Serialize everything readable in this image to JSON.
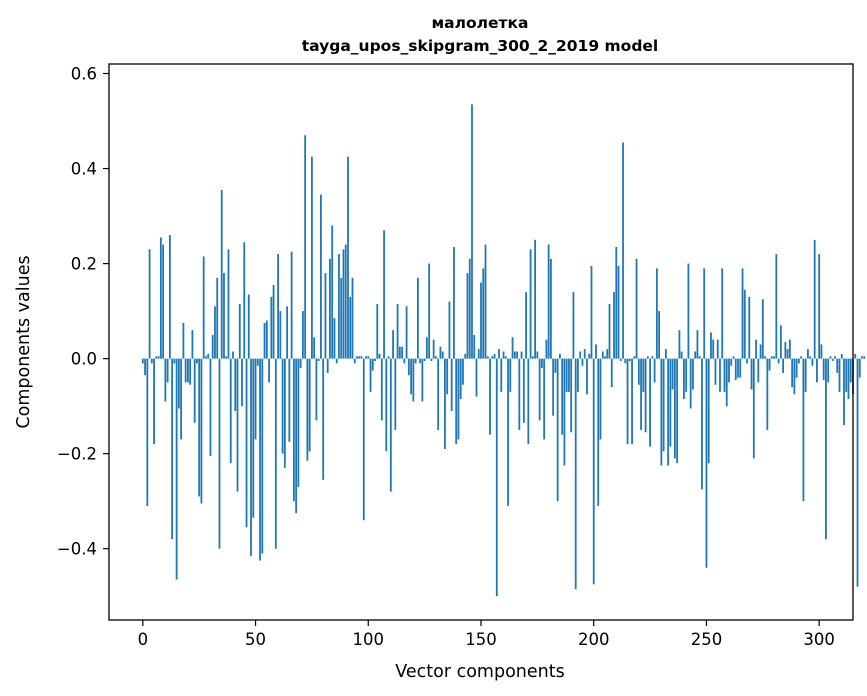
{
  "chart_data": {
    "type": "bar",
    "title_line1": "малолетка",
    "title_line2": "tayga_upos_skipgram_300_2_2019 model",
    "xlabel": "Vector components",
    "ylabel": "Components values",
    "xlim": [
      -15,
      315
    ],
    "ylim": [
      -0.55,
      0.62
    ],
    "xticks": [
      0,
      50,
      100,
      150,
      200,
      250,
      300
    ],
    "yticks": [
      -0.4,
      -0.2,
      0.0,
      0.2,
      0.4,
      0.6
    ],
    "ytick_labels": [
      "−0.4",
      "−0.2",
      "0.0",
      "0.2",
      "0.4",
      "0.6"
    ],
    "grid": false,
    "bar_color": "#1f77b4",
    "values": [
      -0.01,
      -0.035,
      -0.31,
      0.23,
      -0.01,
      -0.18,
      0.005,
      0.005,
      0.255,
      0.24,
      -0.09,
      -0.05,
      0.26,
      -0.38,
      -0.01,
      -0.465,
      -0.105,
      -0.17,
      0.075,
      -0.05,
      -0.05,
      -0.055,
      0.06,
      -0.135,
      -0.01,
      -0.29,
      -0.305,
      0.215,
      0.005,
      0.01,
      -0.205,
      0.05,
      0.11,
      0.17,
      -0.4,
      0.355,
      0.18,
      0.005,
      0.23,
      -0.22,
      0.015,
      -0.11,
      -0.28,
      0.115,
      -0.1,
      0.245,
      -0.355,
      0.135,
      -0.415,
      -0.335,
      -0.17,
      -0.015,
      -0.425,
      -0.41,
      0.075,
      0.08,
      -0.05,
      0.13,
      0.155,
      -0.4,
      0.22,
      0.1,
      -0.2,
      -0.23,
      0.11,
      -0.175,
      0.225,
      -0.3,
      -0.325,
      -0.27,
      -0.02,
      0.1,
      0.47,
      -0.215,
      -0.195,
      0.425,
      0.045,
      -0.13,
      -0.005,
      0.345,
      -0.255,
      0.18,
      -0.03,
      0.21,
      0.28,
      0.085,
      -0.01,
      0.22,
      0.17,
      0.23,
      0.24,
      0.425,
      0.13,
      0.17,
      -0.01,
      0.005,
      0.005,
      0.005,
      -0.34,
      0.005,
      0.005,
      -0.07,
      -0.025,
      -0.005,
      0.115,
      0.01,
      -0.13,
      0.27,
      -0.195,
      0.005,
      -0.28,
      0.06,
      -0.15,
      0.115,
      0.025,
      0.025,
      -0.01,
      0.11,
      -0.035,
      -0.075,
      -0.09,
      -0.01,
      0.17,
      -0.01,
      -0.09,
      -0.005,
      0.045,
      0.2,
      -0.005,
      0.04,
      0.005,
      -0.15,
      0.025,
      0.015,
      -0.19,
      -0.075,
      0.12,
      -0.11,
      0.235,
      -0.18,
      -0.17,
      -0.085,
      -0.055,
      0.01,
      0.18,
      0.21,
      0.535,
      0.05,
      -0.08,
      0.02,
      0.16,
      0.19,
      0.24,
      0.005,
      -0.16,
      0.005,
      0.01,
      -0.5,
      0.02,
      -0.07,
      0.015,
      0.005,
      -0.31,
      -0.07,
      0.045,
      0.015,
      0.015,
      -0.15,
      0.015,
      -0.135,
      0.14,
      -0.18,
      0.23,
      0.005,
      0.25,
      0.015,
      -0.13,
      -0.02,
      -0.17,
      0.04,
      0.24,
      0.21,
      -0.12,
      -0.03,
      -0.3,
      0.01,
      -0.16,
      -0.225,
      -0.07,
      -0.07,
      -0.155,
      0.14,
      -0.485,
      -0.07,
      0.015,
      -0.015,
      0.02,
      -0.075,
      0.01,
      0.195,
      -0.475,
      0.03,
      -0.31,
      -0.17,
      0.015,
      0.005,
      0.02,
      0.115,
      -0.06,
      0.14,
      0.235,
      0.195,
      -0.005,
      0.455,
      -0.01,
      -0.18,
      -0.005,
      -0.18,
      0.005,
      0.21,
      -0.055,
      -0.15,
      -0.07,
      -0.155,
      0.005,
      -0.185,
      0.005,
      -0.05,
      0.19,
      0.1,
      -0.225,
      -0.195,
      0.02,
      -0.225,
      -0.185,
      -0.065,
      -0.21,
      -0.22,
      0.06,
      0.015,
      -0.085,
      -0.07,
      0.2,
      -0.105,
      -0.065,
      0.015,
      0.06,
      0.005,
      -0.275,
      0.19,
      -0.44,
      -0.22,
      0.055,
      0.04,
      -0.055,
      0.04,
      -0.07,
      0.19,
      -0.07,
      -0.1,
      -0.05,
      -0.015,
      0.005,
      -0.045,
      -0.04,
      -0.04,
      0.19,
      0.145,
      -0.01,
      0.13,
      -0.065,
      -0.21,
      0.04,
      -0.05,
      0.03,
      0.125,
      0.005,
      -0.15,
      -0.025,
      0.005,
      0.005,
      0.22,
      -0.01,
      0.07,
      -0.03,
      0.035,
      0.02,
      0.04,
      -0.06,
      -0.075,
      -0.04,
      -0.01,
      0.005,
      -0.3,
      -0.07,
      0.02,
      0.005,
      -0.015,
      0.25,
      -0.05,
      0.22,
      0.03,
      -0.045,
      -0.38,
      -0.05,
      0.005,
      -0.005,
      0.005,
      -0.03,
      -0.07,
      0.01,
      -0.14,
      -0.07,
      -0.085,
      -0.05,
      -0.075,
      0.01,
      -0.48,
      -0.04,
      0.005,
      0.005
    ]
  }
}
